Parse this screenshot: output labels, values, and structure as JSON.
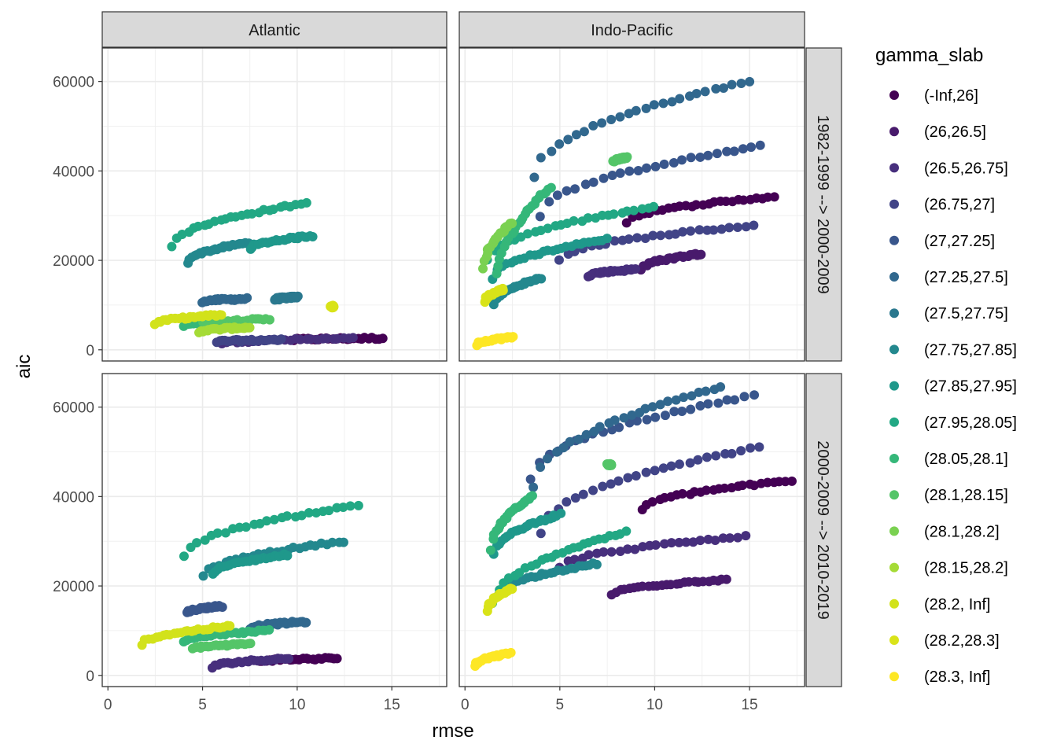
{
  "chart_data": {
    "type": "scatter",
    "xlabel": "rmse",
    "ylabel": "aic",
    "xlim": [
      -0.3,
      17.9
    ],
    "ylim": [
      -2500,
      67500
    ],
    "x_ticks": [
      0,
      5,
      10,
      15
    ],
    "y_ticks": [
      0,
      20000,
      40000,
      60000
    ],
    "y_tick_labels": [
      "0",
      "20000",
      "40000",
      "60000"
    ],
    "grid": true,
    "legend_position": "right",
    "legend_title": "gamma_slab",
    "facet_columns": [
      "Atlantic",
      "Indo-Pacific"
    ],
    "facet_rows": [
      "1982-1999 --> 2000-2009",
      "2000-2009 --> 2010-2019"
    ],
    "categories": [
      {
        "name": "(-Inf,26]",
        "color": "#440154"
      },
      {
        "name": "(26,26.5]",
        "color": "#481A6C"
      },
      {
        "name": "(26.5,26.75]",
        "color": "#472F7D"
      },
      {
        "name": "(26.75,27]",
        "color": "#414487"
      },
      {
        "name": "(27,27.25]",
        "color": "#39568C"
      },
      {
        "name": "(27.25,27.5]",
        "color": "#31688E"
      },
      {
        "name": "(27.5,27.75]",
        "color": "#2A788E"
      },
      {
        "name": "(27.75,27.85]",
        "color": "#23888E"
      },
      {
        "name": "(27.85,27.95]",
        "color": "#1F988B"
      },
      {
        "name": "(27.95,28.05]",
        "color": "#22A884"
      },
      {
        "name": "(28.05,28.1]",
        "color": "#35B779"
      },
      {
        "name": "(28.1,28.15]",
        "color": "#54C568"
      },
      {
        "name": "(28.1,28.2]",
        "color": "#7AD151"
      },
      {
        "name": "(28.15,28.2]",
        "color": "#A5DB36"
      },
      {
        "name": "(28.2, Inf]",
        "color": "#D2E21B"
      },
      {
        "name": "(28.2,28.3]",
        "color": "#D9E319"
      },
      {
        "name": "(28.3, Inf]",
        "color": "#FDE725"
      }
    ],
    "panels": [
      {
        "col": 0,
        "row": 0,
        "series": [
          {
            "cat": 0,
            "x": [
              9.8,
              14.5
            ],
            "y": [
              2200,
              2600
            ]
          },
          {
            "cat": 2,
            "x": [
              6.0,
              13.0
            ],
            "y": [
              1500,
              2500
            ]
          },
          {
            "cat": 3,
            "x": [
              5.8,
              9.2
            ],
            "y": [
              1800,
              2200
            ]
          },
          {
            "cat": 5,
            "x": [
              5.0,
              7.3
            ],
            "y": [
              10800,
              11400
            ]
          },
          {
            "cat": 6,
            "x": [
              8.8,
              10.0
            ],
            "y": [
              11200,
              11800
            ]
          },
          {
            "cat": 7,
            "x": [
              4.2,
              7.5
            ],
            "y": [
              19500,
              24000
            ]
          },
          {
            "cat": 8,
            "x": [
              7.5,
              10.8
            ],
            "y": [
              22500,
              25500
            ]
          },
          {
            "cat": 9,
            "x": [
              3.4,
              10.5
            ],
            "y": [
              23200,
              32800
            ]
          },
          {
            "cat": 10,
            "x": [
              4.0,
              6.0
            ],
            "y": [
              5500,
              6200
            ]
          },
          {
            "cat": 11,
            "x": [
              5.0,
              8.5
            ],
            "y": [
              6000,
              6800
            ]
          },
          {
            "cat": 13,
            "x": [
              4.8,
              7.5
            ],
            "y": [
              4000,
              5000
            ]
          },
          {
            "cat": 14,
            "x": [
              2.5,
              6.0
            ],
            "y": [
              5800,
              7800
            ]
          },
          {
            "cat": 15,
            "x": [
              11.8,
              11.9
            ],
            "y": [
              9600,
              9700
            ]
          }
        ]
      },
      {
        "col": 1,
        "row": 0,
        "series": [
          {
            "cat": 0,
            "x": [
              8.5,
              16.3
            ],
            "y": [
              28500,
              34200
            ]
          },
          {
            "cat": 1,
            "x": [
              9.3,
              12.5
            ],
            "y": [
              18000,
              21500
            ]
          },
          {
            "cat": 2,
            "x": [
              6.5,
              9.0
            ],
            "y": [
              16500,
              18000
            ]
          },
          {
            "cat": 3,
            "x": [
              5.0,
              15.2
            ],
            "y": [
              20000,
              27800
            ]
          },
          {
            "cat": 4,
            "x": [
              4.0,
              15.6
            ],
            "y": [
              30000,
              45500
            ]
          },
          {
            "cat": 5,
            "x": [
              3.6,
              15.0
            ],
            "y": [
              38500,
              60000
            ]
          },
          {
            "cat": 7,
            "x": [
              1.5,
              4.0
            ],
            "y": [
              10000,
              16000
            ]
          },
          {
            "cat": 8,
            "x": [
              1.5,
              7.5
            ],
            "y": [
              16000,
              24800
            ]
          },
          {
            "cat": 9,
            "x": [
              1.2,
              10.0
            ],
            "y": [
              20000,
              32000
            ]
          },
          {
            "cat": 10,
            "x": [
              1.5,
              4.5
            ],
            "y": [
              12000,
              36500
            ]
          },
          {
            "cat": 11,
            "x": [
              7.8,
              8.5
            ],
            "y": [
              42000,
              43000
            ]
          },
          {
            "cat": 12,
            "x": [
              1.0,
              2.5
            ],
            "y": [
              18000,
              28500
            ]
          },
          {
            "cat": 15,
            "x": [
              1.0,
              2.0
            ],
            "y": [
              10500,
              13500
            ]
          },
          {
            "cat": 16,
            "x": [
              0.6,
              2.5
            ],
            "y": [
              1200,
              2800
            ]
          }
        ]
      },
      {
        "col": 0,
        "row": 1,
        "series": [
          {
            "cat": 0,
            "x": [
              8.0,
              12.1
            ],
            "y": [
              3200,
              3800
            ]
          },
          {
            "cat": 2,
            "x": [
              5.5,
              9.5
            ],
            "y": [
              1800,
              3800
            ]
          },
          {
            "cat": 4,
            "x": [
              4.2,
              6.0
            ],
            "y": [
              14000,
              15500
            ]
          },
          {
            "cat": 5,
            "x": [
              7.5,
              10.5
            ],
            "y": [
              10500,
              12000
            ]
          },
          {
            "cat": 7,
            "x": [
              5.0,
              12.5
            ],
            "y": [
              22000,
              30000
            ]
          },
          {
            "cat": 8,
            "x": [
              5.5,
              9.5
            ],
            "y": [
              22500,
              27000
            ]
          },
          {
            "cat": 9,
            "x": [
              4.0,
              13.2
            ],
            "y": [
              26500,
              38000
            ]
          },
          {
            "cat": 10,
            "x": [
              4.0,
              8.5
            ],
            "y": [
              7500,
              10000
            ]
          },
          {
            "cat": 11,
            "x": [
              4.5,
              7.5
            ],
            "y": [
              6000,
              7000
            ]
          },
          {
            "cat": 14,
            "x": [
              1.8,
              6.5
            ],
            "y": [
              7000,
              11000
            ]
          }
        ]
      },
      {
        "col": 1,
        "row": 1,
        "series": [
          {
            "cat": 0,
            "x": [
              9.3,
              17.2
            ],
            "y": [
              37000,
              43500
            ]
          },
          {
            "cat": 1,
            "x": [
              7.7,
              13.8
            ],
            "y": [
              18000,
              21500
            ]
          },
          {
            "cat": 2,
            "x": [
              5.0,
              14.8
            ],
            "y": [
              24000,
              31000
            ]
          },
          {
            "cat": 3,
            "x": [
              4.0,
              15.5
            ],
            "y": [
              32000,
              51000
            ]
          },
          {
            "cat": 4,
            "x": [
              3.5,
              15.2
            ],
            "y": [
              44000,
              62500
            ]
          },
          {
            "cat": 5,
            "x": [
              3.6,
              13.5
            ],
            "y": [
              42000,
              64500
            ]
          },
          {
            "cat": 7,
            "x": [
              1.8,
              7.0
            ],
            "y": [
              18000,
              25000
            ]
          },
          {
            "cat": 8,
            "x": [
              1.5,
              5.0
            ],
            "y": [
              27000,
              36000
            ]
          },
          {
            "cat": 9,
            "x": [
              1.5,
              8.5
            ],
            "y": [
              16000,
              32000
            ]
          },
          {
            "cat": 10,
            "x": [
              1.4,
              3.5
            ],
            "y": [
              28000,
              40000
            ]
          },
          {
            "cat": 11,
            "x": [
              7.5,
              7.7
            ],
            "y": [
              47000,
              47200
            ]
          },
          {
            "cat": 15,
            "x": [
              1.2,
              2.5
            ],
            "y": [
              14500,
              19500
            ]
          },
          {
            "cat": 16,
            "x": [
              0.5,
              2.4
            ],
            "y": [
              2000,
              5000
            ]
          }
        ]
      }
    ]
  }
}
